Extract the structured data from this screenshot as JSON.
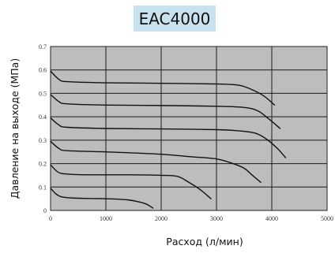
{
  "chart_data": {
    "type": "line",
    "title": "EAC4000",
    "xlabel": "Расход (л/мин)",
    "ylabel": "Давление на выходе (МПа)",
    "xlim": [
      0,
      5000
    ],
    "ylim": [
      0,
      0.7
    ],
    "xticks": [
      "0",
      "1000",
      "2000",
      "3000",
      "4000",
      "5000"
    ],
    "yticks": [
      "0",
      "0.1",
      "0.2",
      "0.3",
      "0.4",
      "0.5",
      "0.6",
      "0.7"
    ],
    "grid": true,
    "plot_background": "#bdbdbd",
    "line_color": "#111111",
    "series": [
      {
        "x": [
          0,
          100,
          200,
          400,
          700,
          1000,
          1400,
          1700,
          1850
        ],
        "y": [
          0.095,
          0.07,
          0.058,
          0.053,
          0.051,
          0.05,
          0.045,
          0.03,
          0.01
        ]
      },
      {
        "x": [
          0,
          100,
          200,
          500,
          1000,
          1500,
          2000,
          2300,
          2500,
          2700,
          2900
        ],
        "y": [
          0.195,
          0.17,
          0.158,
          0.153,
          0.152,
          0.152,
          0.15,
          0.145,
          0.12,
          0.09,
          0.05
        ]
      },
      {
        "x": [
          0,
          150,
          300,
          1000,
          2000,
          2500,
          3000,
          3300,
          3500,
          3650,
          3800
        ],
        "y": [
          0.295,
          0.265,
          0.255,
          0.25,
          0.24,
          0.23,
          0.22,
          0.2,
          0.18,
          0.15,
          0.12
        ]
      },
      {
        "x": [
          0,
          150,
          300,
          1000,
          2000,
          3000,
          3400,
          3700,
          3900,
          4100,
          4250
        ],
        "y": [
          0.395,
          0.365,
          0.355,
          0.35,
          0.348,
          0.345,
          0.34,
          0.33,
          0.305,
          0.265,
          0.225
        ]
      },
      {
        "x": [
          0,
          150,
          300,
          1000,
          2000,
          3000,
          3500,
          3750,
          3950,
          4150
        ],
        "y": [
          0.495,
          0.465,
          0.455,
          0.45,
          0.448,
          0.445,
          0.44,
          0.425,
          0.39,
          0.35
        ]
      },
      {
        "x": [
          0,
          150,
          300,
          1000,
          2000,
          3000,
          3400,
          3600,
          3850,
          4050
        ],
        "y": [
          0.595,
          0.56,
          0.55,
          0.545,
          0.543,
          0.54,
          0.535,
          0.52,
          0.49,
          0.45
        ]
      }
    ]
  }
}
